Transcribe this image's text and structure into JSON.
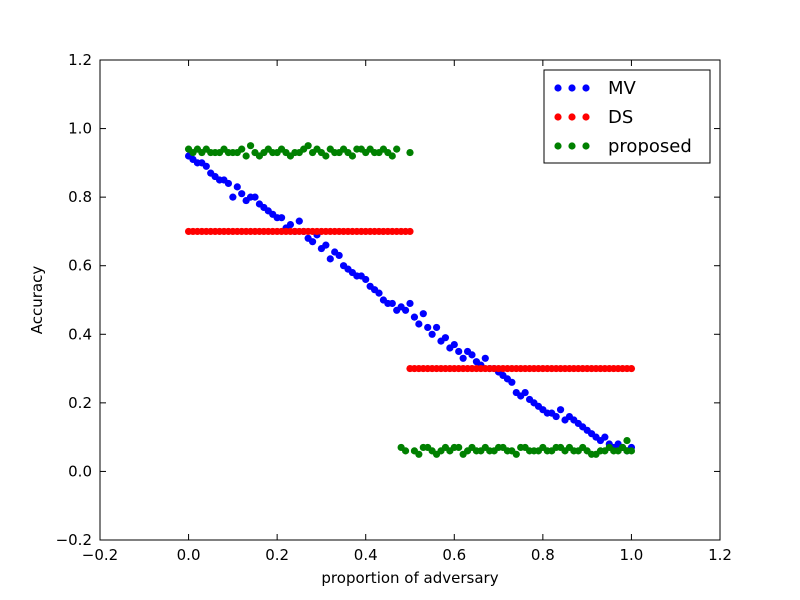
{
  "chart_data": {
    "type": "scatter",
    "xlabel": "proportion of adversary",
    "ylabel": "Accuracy",
    "xlim": [
      -0.2,
      1.2
    ],
    "ylim": [
      -0.2,
      1.2
    ],
    "xticks": [
      "−0.2",
      "0.0",
      "0.2",
      "0.4",
      "0.6",
      "0.8",
      "1.0",
      "1.2"
    ],
    "yticks": [
      "−0.2",
      "0.0",
      "0.2",
      "0.4",
      "0.6",
      "0.8",
      "1.0",
      "1.2"
    ],
    "xtick_values": [
      -0.2,
      0.0,
      0.2,
      0.4,
      0.6,
      0.8,
      1.0,
      1.2
    ],
    "ytick_values": [
      -0.2,
      0.0,
      0.2,
      0.4,
      0.6,
      0.8,
      1.0,
      1.2
    ],
    "grid": false,
    "legend_position": "top-right",
    "series": [
      {
        "name": "MV",
        "color": "#0000ff",
        "x": [
          0.0,
          0.01,
          0.02,
          0.03,
          0.04,
          0.05,
          0.06,
          0.07,
          0.08,
          0.09,
          0.1,
          0.11,
          0.12,
          0.13,
          0.14,
          0.15,
          0.16,
          0.17,
          0.18,
          0.19,
          0.2,
          0.21,
          0.22,
          0.23,
          0.24,
          0.25,
          0.26,
          0.27,
          0.28,
          0.29,
          0.3,
          0.31,
          0.32,
          0.33,
          0.34,
          0.35,
          0.36,
          0.37,
          0.38,
          0.39,
          0.4,
          0.41,
          0.42,
          0.43,
          0.44,
          0.45,
          0.46,
          0.47,
          0.48,
          0.49,
          0.5,
          0.51,
          0.52,
          0.53,
          0.54,
          0.55,
          0.56,
          0.57,
          0.58,
          0.59,
          0.6,
          0.61,
          0.62,
          0.63,
          0.64,
          0.65,
          0.66,
          0.67,
          0.68,
          0.69,
          0.7,
          0.71,
          0.72,
          0.73,
          0.74,
          0.75,
          0.76,
          0.77,
          0.78,
          0.79,
          0.8,
          0.81,
          0.82,
          0.83,
          0.84,
          0.85,
          0.86,
          0.87,
          0.88,
          0.89,
          0.9,
          0.91,
          0.92,
          0.93,
          0.94,
          0.95,
          0.96,
          0.97,
          0.98,
          0.99,
          1.0
        ],
        "y": [
          0.92,
          0.91,
          0.9,
          0.9,
          0.89,
          0.87,
          0.86,
          0.85,
          0.85,
          0.84,
          0.8,
          0.83,
          0.81,
          0.79,
          0.8,
          0.8,
          0.78,
          0.77,
          0.76,
          0.75,
          0.74,
          0.74,
          0.71,
          0.72,
          0.7,
          0.73,
          0.7,
          0.68,
          0.67,
          0.69,
          0.65,
          0.66,
          0.62,
          0.64,
          0.63,
          0.6,
          0.59,
          0.58,
          0.57,
          0.57,
          0.56,
          0.54,
          0.53,
          0.52,
          0.5,
          0.49,
          0.49,
          0.47,
          0.48,
          0.47,
          0.49,
          0.45,
          0.43,
          0.46,
          0.42,
          0.4,
          0.42,
          0.38,
          0.39,
          0.36,
          0.37,
          0.35,
          0.33,
          0.35,
          0.34,
          0.32,
          0.31,
          0.33,
          0.3,
          0.3,
          0.29,
          0.28,
          0.27,
          0.26,
          0.23,
          0.22,
          0.23,
          0.21,
          0.2,
          0.19,
          0.18,
          0.17,
          0.17,
          0.16,
          0.18,
          0.15,
          0.16,
          0.15,
          0.14,
          0.13,
          0.12,
          0.11,
          0.1,
          0.09,
          0.1,
          0.08,
          0.07,
          0.08,
          0.07,
          0.06,
          0.07
        ]
      },
      {
        "name": "DS",
        "color": "#ff0000",
        "segments": [
          {
            "x_start": 0.0,
            "x_end": 0.5,
            "y": 0.7
          },
          {
            "x_start": 0.5,
            "x_end": 1.0,
            "y": 0.3
          }
        ],
        "step": 0.01
      },
      {
        "name": "proposed",
        "color": "#008000",
        "x": [
          0.0,
          0.01,
          0.02,
          0.03,
          0.04,
          0.05,
          0.06,
          0.07,
          0.08,
          0.09,
          0.1,
          0.11,
          0.12,
          0.13,
          0.14,
          0.15,
          0.16,
          0.17,
          0.18,
          0.19,
          0.2,
          0.21,
          0.22,
          0.23,
          0.24,
          0.25,
          0.26,
          0.27,
          0.28,
          0.29,
          0.3,
          0.31,
          0.32,
          0.33,
          0.34,
          0.35,
          0.36,
          0.37,
          0.38,
          0.39,
          0.4,
          0.41,
          0.42,
          0.43,
          0.44,
          0.45,
          0.46,
          0.47,
          0.5,
          0.48,
          0.49,
          0.51,
          0.52,
          0.53,
          0.54,
          0.55,
          0.56,
          0.57,
          0.58,
          0.59,
          0.6,
          0.61,
          0.62,
          0.63,
          0.64,
          0.65,
          0.66,
          0.67,
          0.68,
          0.69,
          0.7,
          0.71,
          0.72,
          0.73,
          0.74,
          0.75,
          0.76,
          0.77,
          0.78,
          0.79,
          0.8,
          0.81,
          0.82,
          0.83,
          0.84,
          0.85,
          0.86,
          0.87,
          0.88,
          0.89,
          0.9,
          0.91,
          0.92,
          0.93,
          0.94,
          0.95,
          0.96,
          0.97,
          0.98,
          0.99,
          1.0,
          0.99
        ],
        "y": [
          0.94,
          0.93,
          0.94,
          0.93,
          0.94,
          0.93,
          0.93,
          0.93,
          0.94,
          0.93,
          0.93,
          0.93,
          0.94,
          0.92,
          0.95,
          0.93,
          0.92,
          0.93,
          0.94,
          0.93,
          0.93,
          0.94,
          0.93,
          0.92,
          0.93,
          0.93,
          0.94,
          0.95,
          0.93,
          0.94,
          0.93,
          0.92,
          0.94,
          0.93,
          0.93,
          0.94,
          0.93,
          0.92,
          0.94,
          0.94,
          0.93,
          0.94,
          0.93,
          0.93,
          0.94,
          0.93,
          0.92,
          0.94,
          0.93,
          0.07,
          0.06,
          0.06,
          0.05,
          0.07,
          0.07,
          0.06,
          0.05,
          0.06,
          0.07,
          0.06,
          0.07,
          0.07,
          0.05,
          0.06,
          0.07,
          0.06,
          0.06,
          0.07,
          0.06,
          0.06,
          0.07,
          0.07,
          0.06,
          0.06,
          0.05,
          0.07,
          0.07,
          0.06,
          0.06,
          0.06,
          0.07,
          0.06,
          0.06,
          0.07,
          0.07,
          0.06,
          0.07,
          0.06,
          0.06,
          0.07,
          0.06,
          0.05,
          0.05,
          0.06,
          0.06,
          0.07,
          0.06,
          0.06,
          0.07,
          0.06,
          0.06,
          0.09
        ]
      }
    ]
  }
}
